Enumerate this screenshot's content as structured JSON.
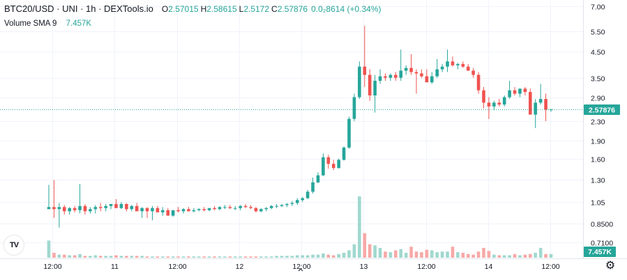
{
  "legend": {
    "title": "BTC20/USD · UNI · 1h · DEXTools.io",
    "open_label": "O",
    "open": "2.57015",
    "high_label": "H",
    "high": "2.58615",
    "low_label": "L",
    "low": "2.5172",
    "close_label": "C",
    "close": "2.57876",
    "change": "0.0₂8614 (+0.34%)"
  },
  "indicator": {
    "name": "Volume SMA 9",
    "value": "7.457K"
  },
  "price_badge": "2.57876",
  "volume_badge": "7.457K",
  "logo_text": "TV",
  "colors": {
    "up": "#26a69a",
    "down": "#ef5350",
    "up_volume": "#9fd8cf",
    "down_volume": "#f7a9a7"
  },
  "chart_data": {
    "type": "candlestick",
    "y_axis_scale": "log",
    "y_ticks": [
      "7.00",
      "5.50",
      "4.50",
      "3.50",
      "2.90",
      "2.30",
      "1.90",
      "1.60",
      "1.30",
      "1.05",
      "0.8500",
      "0.7100"
    ],
    "x_ticks": [
      "12:00",
      "11",
      "12:00",
      "12",
      "12:00",
      "13",
      "12:00",
      "14",
      "12:00"
    ],
    "candles_ohlc": [
      [
        0.98,
        1.24,
        0.98,
        1.0
      ],
      [
        1.0,
        1.3,
        0.9,
        0.98
      ],
      [
        0.98,
        1.04,
        0.82,
        1.0
      ],
      [
        1.0,
        1.02,
        0.93,
        0.96
      ],
      [
        0.96,
        1.0,
        0.93,
        0.99
      ],
      [
        0.99,
        1.01,
        0.95,
        0.97
      ],
      [
        0.97,
        1.25,
        0.94,
        1.01
      ],
      [
        1.01,
        1.03,
        0.93,
        0.96
      ],
      [
        0.96,
        1.0,
        0.94,
        0.98
      ],
      [
        0.98,
        1.02,
        0.94,
        1.0
      ],
      [
        1.0,
        1.04,
        0.96,
        0.99
      ],
      [
        0.99,
        1.03,
        0.96,
        1.01
      ],
      [
        1.01,
        1.03,
        0.98,
        1.03
      ],
      [
        1.03,
        1.08,
        0.99,
        0.99
      ],
      [
        0.99,
        1.05,
        0.98,
        1.03
      ],
      [
        1.03,
        1.04,
        0.96,
        0.98
      ],
      [
        0.98,
        1.02,
        0.96,
        1.01
      ],
      [
        1.01,
        1.04,
        0.99,
        0.96
      ],
      [
        0.96,
        1.0,
        0.9,
        0.99
      ],
      [
        0.99,
        1.0,
        0.9,
        0.96
      ],
      [
        0.96,
        1.01,
        0.88,
        0.99
      ],
      [
        0.99,
        1.01,
        0.95,
        0.95
      ],
      [
        0.95,
        1.0,
        0.92,
        0.97
      ],
      [
        0.97,
        0.99,
        0.92,
        0.92
      ],
      [
        0.92,
        0.97,
        0.91,
        0.97
      ],
      [
        0.97,
        1.0,
        0.95,
        0.96
      ],
      [
        0.96,
        0.99,
        0.94,
        0.98
      ],
      [
        0.98,
        1.0,
        0.96,
        0.96
      ],
      [
        0.96,
        0.99,
        0.95,
        0.97
      ],
      [
        0.97,
        0.99,
        0.96,
        0.98
      ],
      [
        0.98,
        1.0,
        0.96,
        0.97
      ],
      [
        0.97,
        0.99,
        0.96,
        0.99
      ],
      [
        0.99,
        1.01,
        0.97,
        0.98
      ],
      [
        0.98,
        1.01,
        0.97,
        1.0
      ],
      [
        1.0,
        1.02,
        0.98,
        1.0
      ],
      [
        1.0,
        1.02,
        0.98,
        0.99
      ],
      [
        0.99,
        1.01,
        0.97,
        0.99
      ],
      [
        0.99,
        1.02,
        0.97,
        1.01
      ],
      [
        1.01,
        1.03,
        0.99,
        1.0
      ],
      [
        1.0,
        1.02,
        0.98,
        0.99
      ],
      [
        0.99,
        1.0,
        0.95,
        0.96
      ],
      [
        0.96,
        0.99,
        0.95,
        0.98
      ],
      [
        0.98,
        1.0,
        0.96,
        0.99
      ],
      [
        0.99,
        1.02,
        0.98,
        1.01
      ],
      [
        1.01,
        1.03,
        0.99,
        1.01
      ],
      [
        1.01,
        1.03,
        1.0,
        1.02
      ],
      [
        1.02,
        1.04,
        1.0,
        1.03
      ],
      [
        1.03,
        1.06,
        1.01,
        1.04
      ],
      [
        1.04,
        1.09,
        1.02,
        1.07
      ],
      [
        1.07,
        1.1,
        1.05,
        1.09
      ],
      [
        1.09,
        1.18,
        1.08,
        1.16
      ],
      [
        1.16,
        1.33,
        1.14,
        1.27
      ],
      [
        1.27,
        1.4,
        1.26,
        1.36
      ],
      [
        1.36,
        1.68,
        1.35,
        1.62
      ],
      [
        1.62,
        1.66,
        1.45,
        1.52
      ],
      [
        1.52,
        1.58,
        1.43,
        1.46
      ],
      [
        1.46,
        1.6,
        1.45,
        1.58
      ],
      [
        1.58,
        1.8,
        1.57,
        1.78
      ],
      [
        1.78,
        2.4,
        1.76,
        2.35
      ],
      [
        2.35,
        3.0,
        2.3,
        2.9
      ],
      [
        2.9,
        4.1,
        2.85,
        3.9
      ],
      [
        3.9,
        5.8,
        3.2,
        3.6
      ],
      [
        3.6,
        3.8,
        2.8,
        2.95
      ],
      [
        2.95,
        3.6,
        2.5,
        3.4
      ],
      [
        3.4,
        3.8,
        3.3,
        3.55
      ],
      [
        3.55,
        3.65,
        3.4,
        3.5
      ],
      [
        3.5,
        3.65,
        3.4,
        3.6
      ],
      [
        3.6,
        3.7,
        3.4,
        3.5
      ],
      [
        3.5,
        4.6,
        3.4,
        3.75
      ],
      [
        3.75,
        3.95,
        3.6,
        3.85
      ],
      [
        3.85,
        4.4,
        3.6,
        3.7
      ],
      [
        3.7,
        3.8,
        3.0,
        3.65
      ],
      [
        3.65,
        3.8,
        3.5,
        3.55
      ],
      [
        3.55,
        3.8,
        3.45,
        3.35
      ],
      [
        3.35,
        3.7,
        3.3,
        3.55
      ],
      [
        3.55,
        4.2,
        3.5,
        3.8
      ],
      [
        3.8,
        4.0,
        3.7,
        3.9
      ],
      [
        3.9,
        4.6,
        3.7,
        4.1
      ],
      [
        4.1,
        4.3,
        3.9,
        3.95
      ],
      [
        3.95,
        4.05,
        3.8,
        4.0
      ],
      [
        4.0,
        4.1,
        3.85,
        3.9
      ],
      [
        3.9,
        4.0,
        3.75,
        3.75
      ],
      [
        3.75,
        3.85,
        3.5,
        3.6
      ],
      [
        3.6,
        3.7,
        3.0,
        3.1
      ],
      [
        3.1,
        3.2,
        2.6,
        2.75
      ],
      [
        2.75,
        2.9,
        2.35,
        2.65
      ],
      [
        2.65,
        2.8,
        2.55,
        2.75
      ],
      [
        2.75,
        2.85,
        2.65,
        2.7
      ],
      [
        2.7,
        2.95,
        2.65,
        2.9
      ],
      [
        2.9,
        3.4,
        2.85,
        3.1
      ],
      [
        3.1,
        3.2,
        2.95,
        3.0
      ],
      [
        3.0,
        3.15,
        2.9,
        3.15
      ],
      [
        3.15,
        3.2,
        2.95,
        3.05
      ],
      [
        3.05,
        3.15,
        2.6,
        2.45
      ],
      [
        2.45,
        2.85,
        2.15,
        2.75
      ],
      [
        2.75,
        3.3,
        2.7,
        2.85
      ],
      [
        2.85,
        3.0,
        2.3,
        2.57
      ],
      [
        2.57015,
        2.58615,
        2.5172,
        2.57876
      ]
    ],
    "volume_relative": [
      0.28,
      0.08,
      0.05,
      0.05,
      0.04,
      0.04,
      0.06,
      0.03,
      0.03,
      0.04,
      0.03,
      0.03,
      0.03,
      0.04,
      0.03,
      0.03,
      0.03,
      0.03,
      0.03,
      0.02,
      0.02,
      0.02,
      0.02,
      0.02,
      0.02,
      0.02,
      0.02,
      0.02,
      0.02,
      0.02,
      0.02,
      0.02,
      0.02,
      0.02,
      0.02,
      0.02,
      0.02,
      0.02,
      0.02,
      0.02,
      0.02,
      0.02,
      0.02,
      0.02,
      0.03,
      0.03,
      0.03,
      0.03,
      0.04,
      0.04,
      0.04,
      0.05,
      0.05,
      0.07,
      0.05,
      0.04,
      0.06,
      0.08,
      0.12,
      0.22,
      1.0,
      0.4,
      0.22,
      0.2,
      0.16,
      0.1,
      0.09,
      0.12,
      0.14,
      0.08,
      0.18,
      0.1,
      0.09,
      0.13,
      0.12,
      0.09,
      0.1,
      0.1,
      0.18,
      0.09,
      0.08,
      0.06,
      0.05,
      0.1,
      0.16,
      0.11,
      0.05,
      0.04,
      0.04,
      0.04,
      0.06,
      0.04,
      0.05,
      0.06,
      0.08,
      0.16,
      0.06,
      0.06
    ]
  }
}
